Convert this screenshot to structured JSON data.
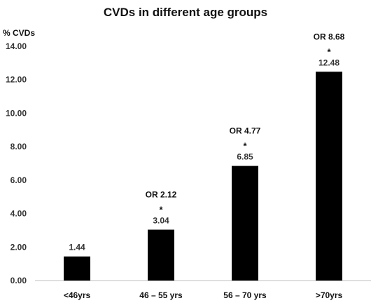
{
  "chart_data": {
    "type": "bar",
    "title": "CVDs in different age groups",
    "ylabel": "% CVDs",
    "xlabel": "",
    "ylim": [
      0,
      14
    ],
    "yticks": [
      "0.00",
      "2.00",
      "4.00",
      "6.00",
      "8.00",
      "10.00",
      "12.00",
      "14.00"
    ],
    "categories": [
      "<46yrs",
      "46 – 55 yrs",
      "56 – 70 yrs",
      ">70yrs"
    ],
    "values": [
      1.44,
      3.04,
      6.85,
      12.48
    ],
    "value_labels": [
      "1.44",
      "3.04",
      "6.85",
      "12.48"
    ],
    "significance": [
      "",
      "*",
      "*",
      "*"
    ],
    "odds_ratios": [
      "",
      "OR 2.12",
      "OR 4.77",
      "OR 8.68"
    ],
    "bar_color": "#000000",
    "axis_color": "#bfbfbf",
    "grid": false,
    "legend": "none"
  }
}
